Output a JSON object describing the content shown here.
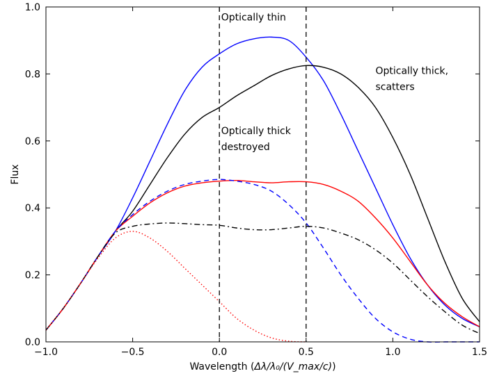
{
  "chart_data": {
    "type": "line",
    "title": "",
    "xlabel_main": "Wavelength (",
    "xlabel_math": "Δλ/λ₀/(V_max/c)",
    "xlabel": "Wavelength (Δλ/λ₀/(V_max/c))",
    "ylabel": "Flux",
    "xlim": [
      -1.0,
      1.5
    ],
    "ylim": [
      0.0,
      1.0
    ],
    "xticks": [
      "−1.0",
      "−0.5",
      "0.0",
      "0.5",
      "1.0",
      "1.5"
    ],
    "yticks": [
      "0.0",
      "0.2",
      "0.4",
      "0.6",
      "0.8",
      "1.0"
    ],
    "grid": false,
    "legend": "none",
    "vlines": [
      0.0,
      0.5
    ],
    "annotations": [
      {
        "lines": [
          "Optically thin"
        ],
        "x": 0.01,
        "y": 0.96
      },
      {
        "lines": [
          "Optically thick,",
          "scatters"
        ],
        "x": 0.9,
        "y": 0.8
      },
      {
        "lines": [
          "Optically thick",
          "destroyed"
        ],
        "x": 0.01,
        "y": 0.62
      }
    ],
    "series": [
      {
        "color": "#0000ff",
        "style": "solid",
        "x": [
          -1.0,
          -0.9,
          -0.8,
          -0.7,
          -0.6,
          -0.5,
          -0.4,
          -0.3,
          -0.2,
          -0.1,
          0.0,
          0.1,
          0.2,
          0.3,
          0.4,
          0.5,
          0.6,
          0.7,
          0.8,
          0.9,
          1.0,
          1.1,
          1.2,
          1.3,
          1.4,
          1.5
        ],
        "y": [
          0.035,
          0.1,
          0.175,
          0.255,
          0.33,
          0.43,
          0.54,
          0.65,
          0.75,
          0.82,
          0.86,
          0.89,
          0.905,
          0.91,
          0.9,
          0.85,
          0.78,
          0.68,
          0.57,
          0.46,
          0.35,
          0.25,
          0.17,
          0.11,
          0.07,
          0.045
        ]
      },
      {
        "color": "#000000",
        "style": "solid",
        "x": [
          -1.0,
          -0.9,
          -0.8,
          -0.7,
          -0.6,
          -0.5,
          -0.4,
          -0.3,
          -0.2,
          -0.1,
          0.0,
          0.1,
          0.2,
          0.3,
          0.4,
          0.5,
          0.6,
          0.7,
          0.8,
          0.9,
          1.0,
          1.1,
          1.2,
          1.3,
          1.4,
          1.5
        ],
        "y": [
          0.035,
          0.1,
          0.175,
          0.255,
          0.33,
          0.39,
          0.47,
          0.55,
          0.62,
          0.67,
          0.7,
          0.735,
          0.765,
          0.795,
          0.815,
          0.825,
          0.82,
          0.8,
          0.76,
          0.7,
          0.61,
          0.5,
          0.37,
          0.24,
          0.13,
          0.06
        ]
      },
      {
        "color": "#ff0000",
        "style": "solid",
        "x": [
          -1.0,
          -0.9,
          -0.8,
          -0.7,
          -0.6,
          -0.5,
          -0.4,
          -0.3,
          -0.2,
          -0.1,
          0.0,
          0.1,
          0.2,
          0.3,
          0.4,
          0.5,
          0.6,
          0.7,
          0.8,
          0.9,
          1.0,
          1.1,
          1.2,
          1.3,
          1.4,
          1.5
        ],
        "y": [
          0.035,
          0.1,
          0.175,
          0.255,
          0.33,
          0.375,
          0.415,
          0.445,
          0.465,
          0.475,
          0.48,
          0.482,
          0.478,
          0.475,
          0.478,
          0.478,
          0.47,
          0.45,
          0.42,
          0.37,
          0.31,
          0.24,
          0.17,
          0.115,
          0.075,
          0.045
        ]
      },
      {
        "color": "#0000ff",
        "style": "dashed",
        "x": [
          -1.0,
          -0.9,
          -0.8,
          -0.7,
          -0.6,
          -0.5,
          -0.4,
          -0.3,
          -0.2,
          -0.1,
          0.0,
          0.1,
          0.2,
          0.3,
          0.4,
          0.5,
          0.6,
          0.7,
          0.8,
          0.9,
          1.0,
          1.1,
          1.2,
          1.3,
          1.4,
          1.5
        ],
        "y": [
          0.035,
          0.1,
          0.175,
          0.255,
          0.33,
          0.38,
          0.42,
          0.45,
          0.47,
          0.48,
          0.485,
          0.48,
          0.47,
          0.45,
          0.41,
          0.355,
          0.28,
          0.2,
          0.13,
          0.07,
          0.03,
          0.008,
          0.0,
          0.0,
          0.0,
          0.0
        ]
      },
      {
        "color": "#000000",
        "style": "dashdot",
        "x": [
          -1.0,
          -0.9,
          -0.8,
          -0.7,
          -0.6,
          -0.5,
          -0.4,
          -0.3,
          -0.2,
          -0.1,
          0.0,
          0.1,
          0.2,
          0.3,
          0.4,
          0.5,
          0.6,
          0.7,
          0.8,
          0.9,
          1.0,
          1.1,
          1.2,
          1.3,
          1.4,
          1.5
        ],
        "y": [
          0.035,
          0.1,
          0.175,
          0.255,
          0.325,
          0.345,
          0.352,
          0.355,
          0.353,
          0.35,
          0.348,
          0.34,
          0.335,
          0.335,
          0.34,
          0.345,
          0.34,
          0.325,
          0.305,
          0.275,
          0.235,
          0.185,
          0.135,
          0.09,
          0.05,
          0.025
        ]
      },
      {
        "color": "#ff0000",
        "style": "dotted",
        "x": [
          -1.0,
          -0.9,
          -0.8,
          -0.7,
          -0.6,
          -0.5,
          -0.4,
          -0.3,
          -0.2,
          -0.1,
          0.0,
          0.1,
          0.2,
          0.3,
          0.4,
          0.5
        ],
        "y": [
          0.035,
          0.1,
          0.175,
          0.25,
          0.31,
          0.33,
          0.31,
          0.27,
          0.22,
          0.17,
          0.12,
          0.07,
          0.035,
          0.012,
          0.002,
          0.0
        ]
      }
    ]
  }
}
